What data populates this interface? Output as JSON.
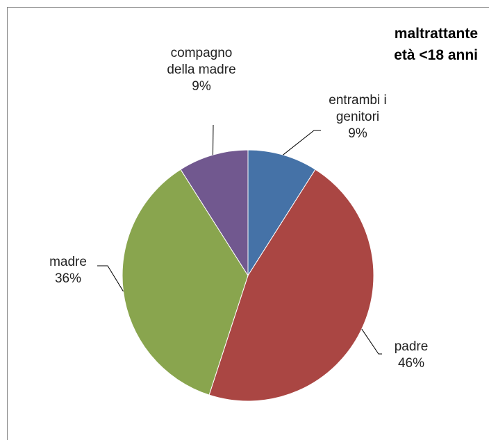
{
  "chart_data": {
    "type": "pie",
    "title": [
      "maltrattante",
      "età <18 anni"
    ],
    "categories": [
      "entrambi i genitori",
      "padre",
      "madre",
      "compagno della madre"
    ],
    "values": [
      9,
      46,
      36,
      9
    ],
    "value_labels": [
      "9%",
      "46%",
      "36%",
      "9%"
    ],
    "colors": [
      "#4572a7",
      "#aa4643",
      "#89a54e",
      "#71588f"
    ]
  }
}
